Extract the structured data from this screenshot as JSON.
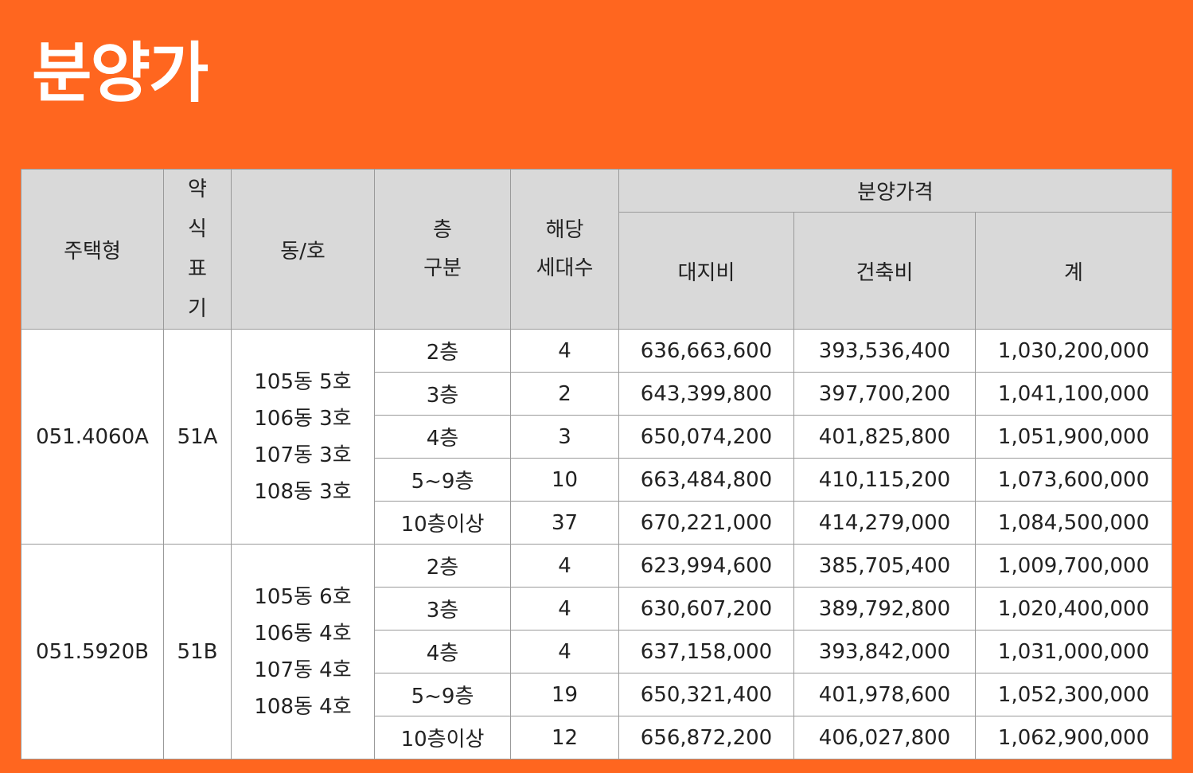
{
  "title": "분양가",
  "table": {
    "headers": {
      "type": "주택형",
      "abbr_lines": [
        "약",
        "식",
        "표",
        "기"
      ],
      "dongho": "동/호",
      "floor_lines": [
        "층",
        "구분"
      ],
      "units_lines": [
        "해당",
        "세대수"
      ],
      "price_group": "분양가격",
      "land": "대지비",
      "building": "건축비",
      "total": "계"
    },
    "groups": [
      {
        "type": "051.4060A",
        "abbr": "51A",
        "dongho": [
          "105동 5호",
          "106동 3호",
          "107동 3호",
          "108동 3호"
        ],
        "rows": [
          {
            "floor": "2층",
            "units": "4",
            "land": "636,663,600",
            "building": "393,536,400",
            "total": "1,030,200,000"
          },
          {
            "floor": "3층",
            "units": "2",
            "land": "643,399,800",
            "building": "397,700,200",
            "total": "1,041,100,000"
          },
          {
            "floor": "4층",
            "units": "3",
            "land": "650,074,200",
            "building": "401,825,800",
            "total": "1,051,900,000"
          },
          {
            "floor": "5~9층",
            "units": "10",
            "land": "663,484,800",
            "building": "410,115,200",
            "total": "1,073,600,000"
          },
          {
            "floor": "10층이상",
            "units": "37",
            "land": "670,221,000",
            "building": "414,279,000",
            "total": "1,084,500,000"
          }
        ]
      },
      {
        "type": "051.5920B",
        "abbr": "51B",
        "dongho": [
          "105동 6호",
          "106동 4호",
          "107동 4호",
          "108동 4호"
        ],
        "rows": [
          {
            "floor": "2층",
            "units": "4",
            "land": "623,994,600",
            "building": "385,705,400",
            "total": "1,009,700,000"
          },
          {
            "floor": "3층",
            "units": "4",
            "land": "630,607,200",
            "building": "389,792,800",
            "total": "1,020,400,000"
          },
          {
            "floor": "4층",
            "units": "4",
            "land": "637,158,000",
            "building": "393,842,000",
            "total": "1,031,000,000"
          },
          {
            "floor": "5~9층",
            "units": "19",
            "land": "650,321,400",
            "building": "401,978,600",
            "total": "1,052,300,000"
          },
          {
            "floor": "10층이상",
            "units": "12",
            "land": "656,872,200",
            "building": "406,027,800",
            "total": "1,062,900,000"
          }
        ]
      }
    ]
  }
}
